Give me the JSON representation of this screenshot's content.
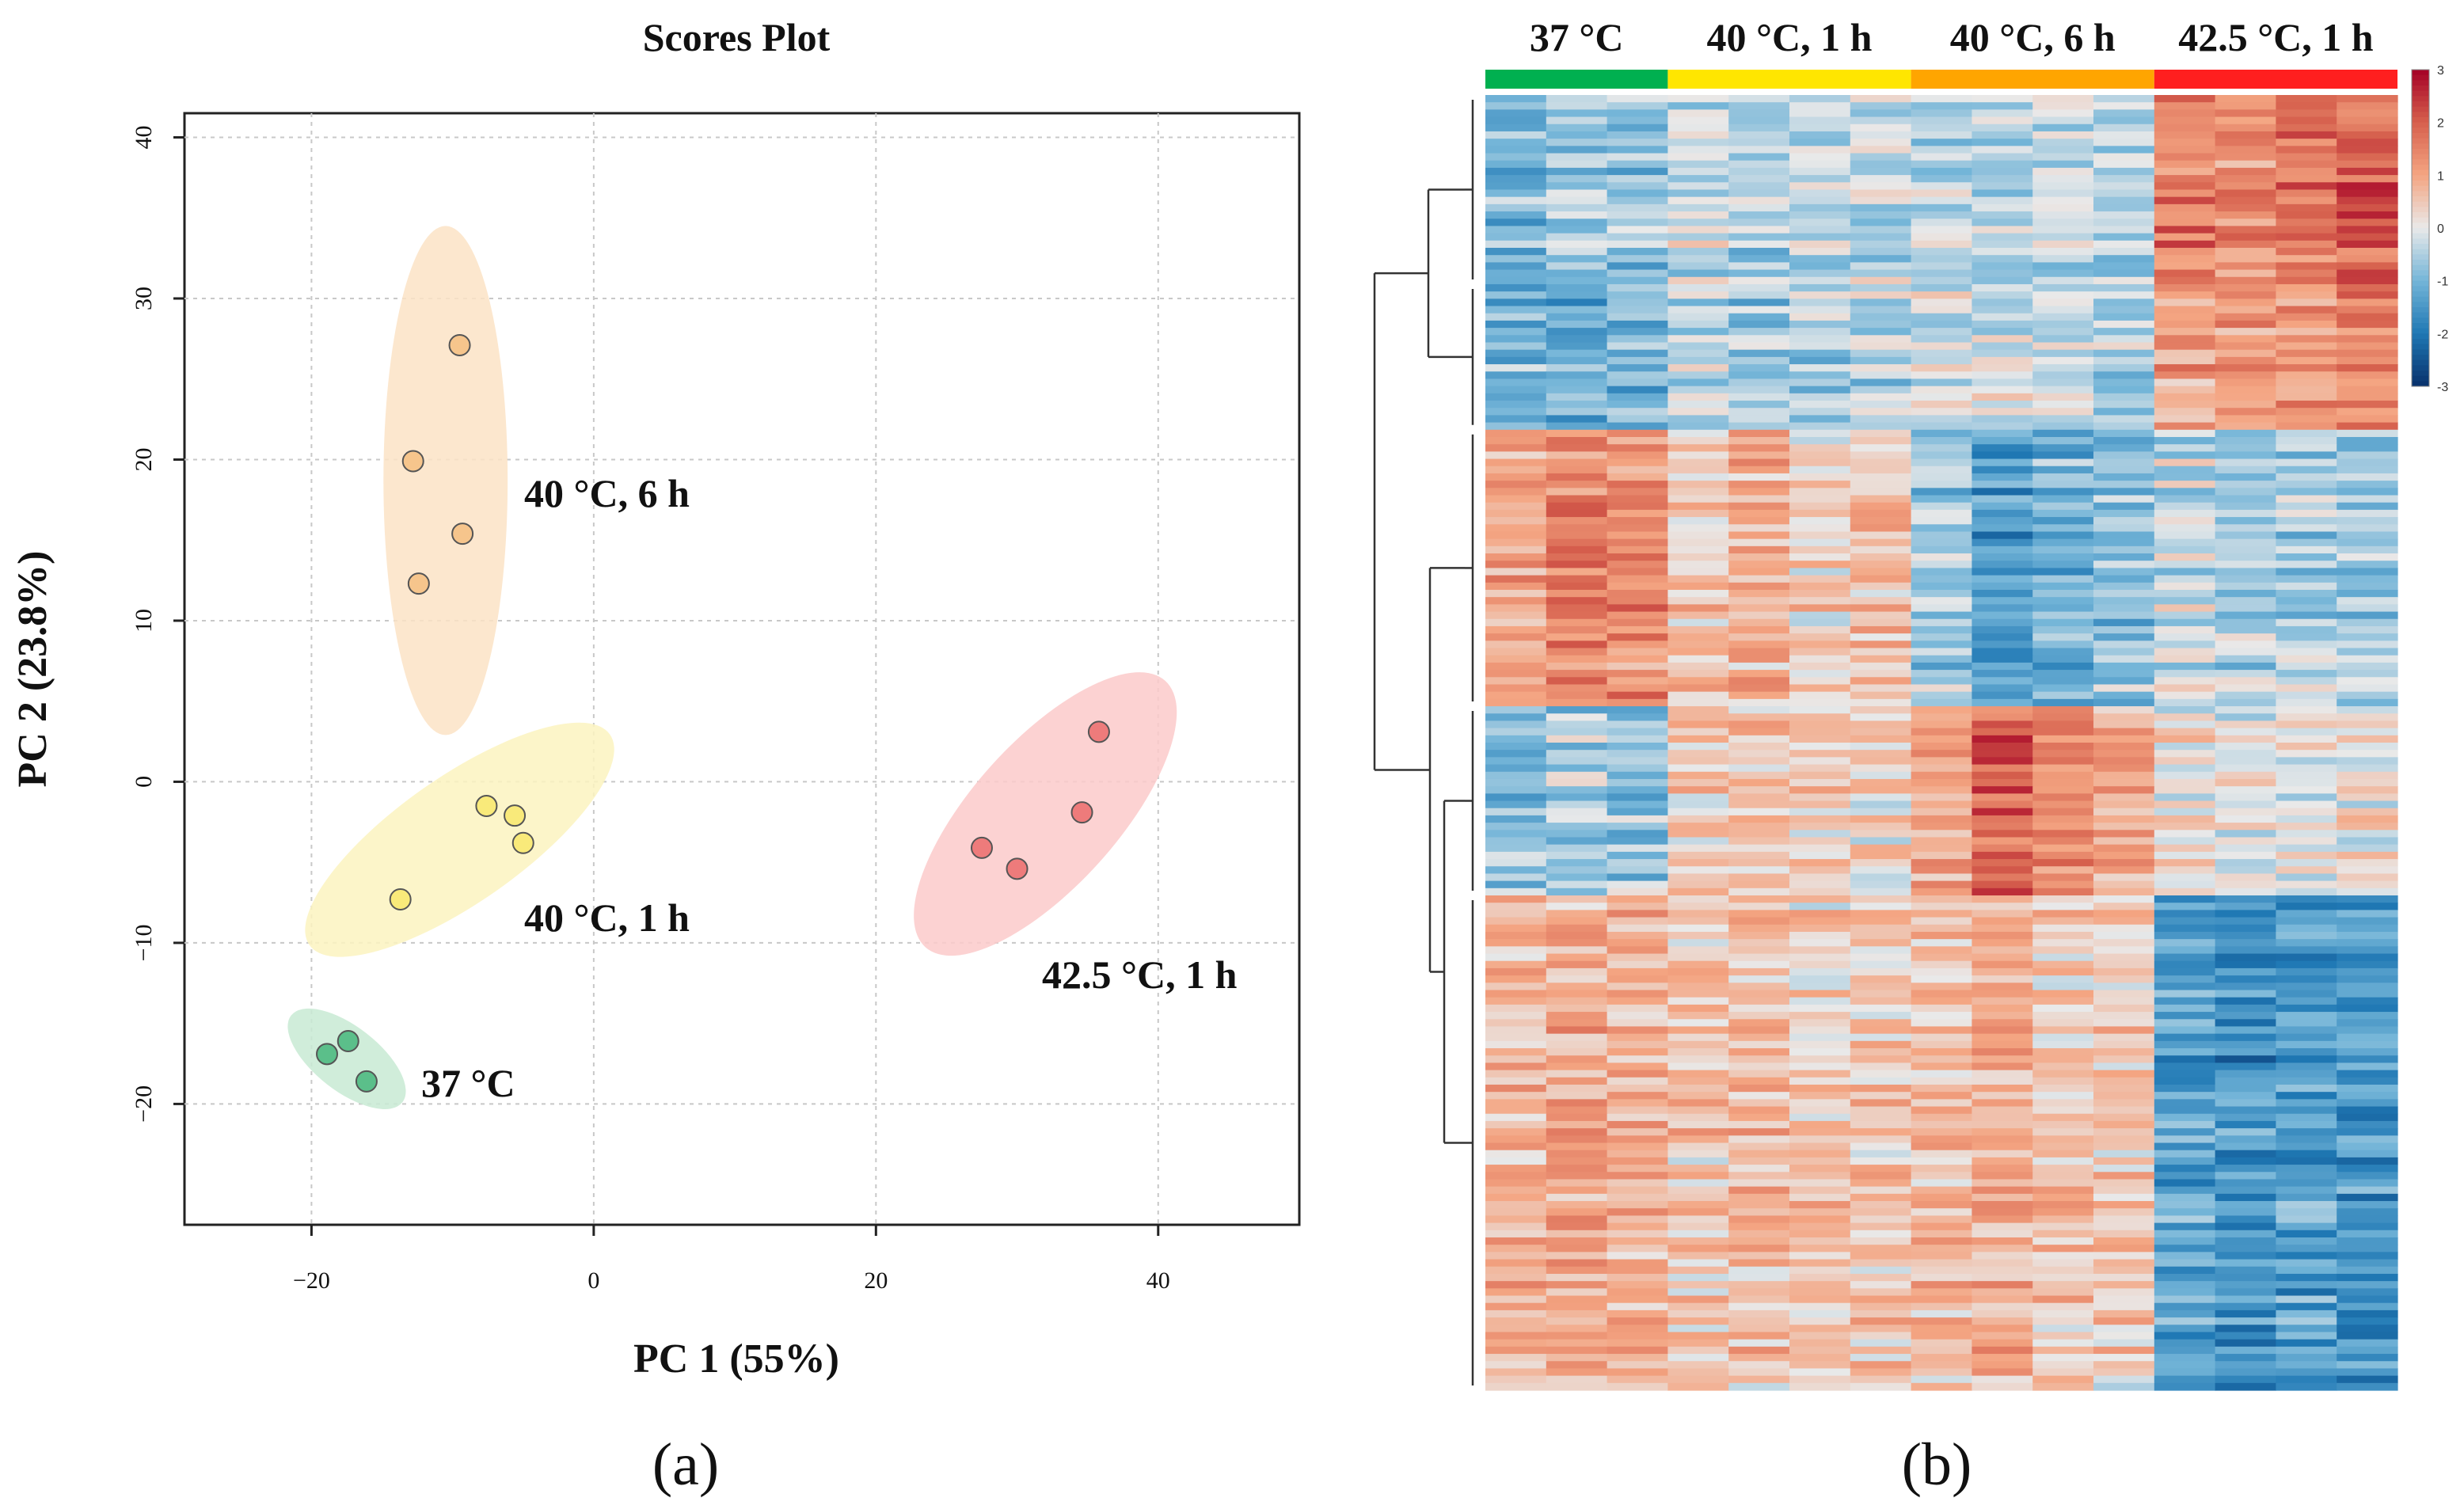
{
  "chart_data": [
    {
      "type": "scatter",
      "panel_label": "(a)",
      "title": "Scores Plot",
      "xlabel": "PC 1 (55%)",
      "ylabel": "PC 2 (23.8%)",
      "xlim": [
        -29,
        50
      ],
      "ylim": [
        -27.5,
        41.5
      ],
      "xticks": [
        -20,
        0,
        20,
        40
      ],
      "yticks": [
        -20,
        -10,
        0,
        10,
        20,
        30,
        40
      ],
      "xtick_labels": [
        "−20",
        "0",
        "20",
        "40"
      ],
      "ytick_labels": [
        "−20",
        "−10",
        "0",
        "10",
        "20",
        "30",
        "40"
      ],
      "grid": true,
      "groups": [
        {
          "name": "37 °C",
          "fill": "#5bbf8a",
          "ellipse_color": "#c8ead3",
          "points": [
            [
              -18.9,
              -16.9
            ],
            [
              -17.4,
              -16.1
            ],
            [
              -16.1,
              -18.6
            ]
          ],
          "ellipse": {
            "cx": -17.5,
            "cy": -17.2,
            "rx": 5.0,
            "ry": 2.0,
            "angle_deg": -38
          }
        },
        {
          "name": "40 °C, 1 h",
          "fill": "#f9ea7a",
          "ellipse_color": "#fbf3bf",
          "points": [
            [
              -13.7,
              -7.3
            ],
            [
              -7.6,
              -1.5
            ],
            [
              -5.6,
              -2.1
            ],
            [
              -5.0,
              -3.8
            ]
          ],
          "ellipse": {
            "cx": -9.5,
            "cy": -3.6,
            "rx": 13.0,
            "ry": 3.9,
            "angle_deg": 35
          }
        },
        {
          "name": "40 °C, 6 h",
          "fill": "#f6c58c",
          "ellipse_color": "#fce3c6",
          "points": [
            [
              -9.5,
              27.1
            ],
            [
              -12.8,
              19.9
            ],
            [
              -9.3,
              15.4
            ],
            [
              -12.4,
              12.3
            ]
          ],
          "ellipse": {
            "cx": -10.5,
            "cy": 18.7,
            "rx": 4.4,
            "ry": 15.8,
            "angle_deg": 0
          }
        },
        {
          "name": "42.5 °C, 1 h",
          "fill": "#ee7b7b",
          "ellipse_color": "#fbcaca",
          "points": [
            [
              35.8,
              3.1
            ],
            [
              34.6,
              -1.9
            ],
            [
              27.5,
              -4.1
            ],
            [
              30.0,
              -5.4
            ]
          ],
          "ellipse": {
            "cx": 32.0,
            "cy": -2.0,
            "rx": 12.7,
            "ry": 4.5,
            "angle_deg": 48
          }
        }
      ]
    },
    {
      "type": "heatmap",
      "panel_label": "(b)",
      "group_labels": [
        "37 °C",
        "40 °C, 1 h",
        "40 °C, 6 h",
        "42.5 °C, 1 h"
      ],
      "group_colors": [
        "#00b050",
        "#ffe600",
        "#ffa500",
        "#ff1f1f"
      ],
      "samples_per_group": [
        3,
        4,
        4,
        4
      ],
      "color_scale": {
        "min": -3,
        "max": 3,
        "ticks": [
          "3",
          "2",
          "1",
          "0",
          "-1",
          "-2",
          "-3"
        ]
      },
      "row_blocks": [
        {
          "name": "A",
          "rows": 26,
          "pattern": [
            -0.9,
            -0.6,
            -0.8,
            -0.3,
            -0.5,
            -0.2,
            -0.3,
            -0.4,
            -0.5,
            -0.2,
            -0.3,
            1.6,
            1.4,
            1.7,
            2.0
          ]
        },
        {
          "name": "B",
          "rows": 20,
          "pattern": [
            -1.0,
            -1.3,
            -1.0,
            -0.5,
            -0.7,
            -0.6,
            -0.5,
            -0.3,
            -0.2,
            -0.4,
            -0.6,
            1.0,
            1.3,
            1.1,
            1.4
          ]
        },
        {
          "name": "C",
          "rows": 38,
          "pattern": [
            1.1,
            1.5,
            1.4,
            0.5,
            0.8,
            0.4,
            0.6,
            -0.6,
            -1.4,
            -0.9,
            -0.7,
            -0.3,
            -0.4,
            -0.5,
            -0.6
          ]
        },
        {
          "name": "D",
          "rows": 26,
          "pattern": [
            -0.8,
            -0.6,
            -0.7,
            0.4,
            0.5,
            0.3,
            0.2,
            0.9,
            2.0,
            1.3,
            1.0,
            0.1,
            -0.1,
            0.0,
            0.1
          ]
        },
        {
          "name": "E",
          "rows": 68,
          "pattern": [
            0.7,
            0.9,
            0.8,
            0.5,
            0.6,
            0.4,
            0.5,
            0.6,
            0.8,
            0.5,
            0.4,
            -1.3,
            -1.6,
            -1.4,
            -1.5
          ]
        }
      ]
    }
  ]
}
